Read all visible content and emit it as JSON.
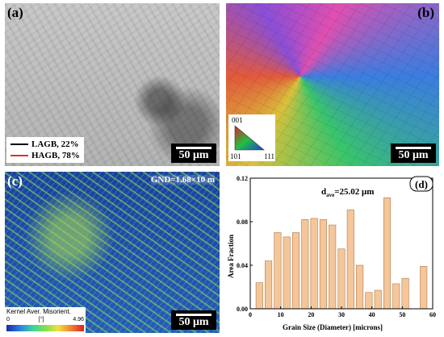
{
  "panels": {
    "a": {
      "letter": "(a)",
      "legend": [
        {
          "label": "LAGB, 22%",
          "color": "#000000"
        },
        {
          "label": "HAGB, 78%",
          "color": "#d9342b"
        }
      ],
      "scale": "50 μm"
    },
    "b": {
      "letter": "(b)",
      "ipf_key": {
        "top": "001",
        "left": "101",
        "right": "111"
      },
      "scale": "50 μm"
    },
    "c": {
      "letter": "(c)",
      "gnd": "GND=1.68×10 m",
      "kam_title": "Kernel Aver. Misorient.",
      "kam_min": "0",
      "kam_unit": "[°]",
      "kam_max": "4.96",
      "scale": "50 μm"
    },
    "d": {
      "letter": "(d)",
      "annotation": "d",
      "annotation_sub": "ave",
      "annotation_value": "=25.02 μm"
    }
  },
  "chart_data": {
    "type": "bar",
    "x": [
      3,
      6,
      9,
      12,
      15,
      18,
      21,
      24,
      27,
      30,
      33,
      36,
      39,
      42,
      45,
      48,
      51,
      54,
      57
    ],
    "values": [
      0.024,
      0.044,
      0.07,
      0.066,
      0.07,
      0.082,
      0.083,
      0.082,
      0.077,
      0.055,
      0.091,
      0.04,
      0.015,
      0.017,
      0.102,
      0.023,
      0.028,
      0.0,
      0.039
    ],
    "xlabel": "Grain Size (Diameter) [microns]",
    "ylabel": "Area Fraction",
    "xlim": [
      0,
      60
    ],
    "ylim": [
      0,
      0.12
    ],
    "xticks": [
      0,
      10,
      20,
      30,
      40,
      50,
      60
    ],
    "yticks": [
      0.0,
      0.04,
      0.08,
      0.12
    ],
    "bar_color": "#f4c69a",
    "bar_edge": "#b07a4a",
    "grid": false
  }
}
